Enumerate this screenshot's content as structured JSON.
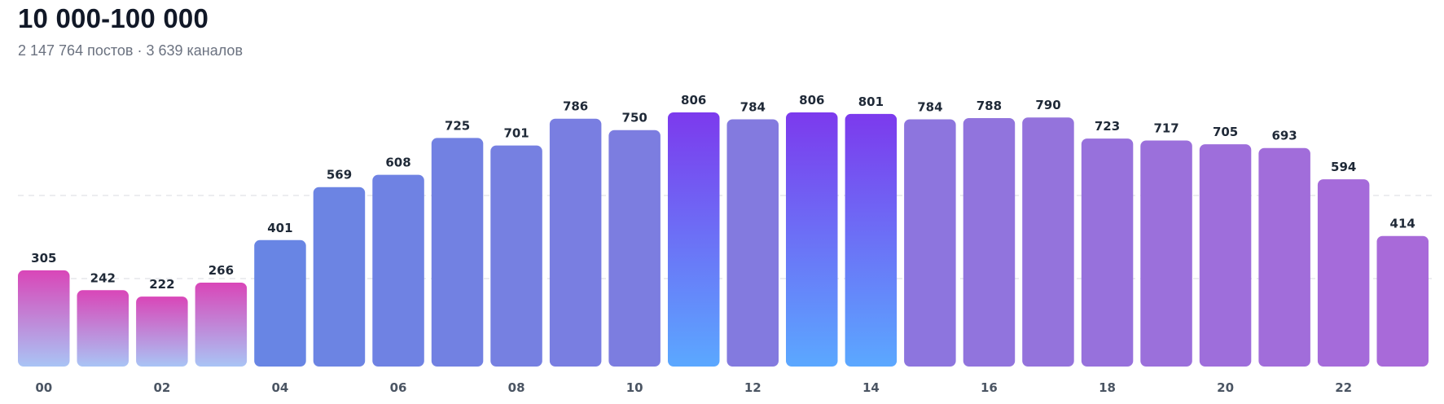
{
  "header": {
    "title": "10 000-100 000",
    "subtitle": "2 147 764 постов · 3 639 каналов"
  },
  "chart_data": {
    "type": "bar",
    "categories": [
      "00",
      "01",
      "02",
      "03",
      "04",
      "05",
      "06",
      "07",
      "08",
      "09",
      "10",
      "11",
      "12",
      "13",
      "14",
      "15",
      "16",
      "17",
      "18",
      "19",
      "20",
      "21",
      "22",
      "23"
    ],
    "visible_tick_labels": [
      "00",
      "",
      "02",
      "",
      "04",
      "",
      "06",
      "",
      "08",
      "",
      "10",
      "",
      "12",
      "",
      "14",
      "",
      "16",
      "",
      "18",
      "",
      "20",
      "",
      "22",
      ""
    ],
    "values": [
      305,
      242,
      222,
      266,
      401,
      569,
      608,
      725,
      701,
      786,
      750,
      806,
      784,
      806,
      801,
      784,
      788,
      790,
      723,
      717,
      705,
      693,
      594,
      414
    ],
    "highlighted": [
      false,
      false,
      false,
      false,
      false,
      false,
      false,
      false,
      false,
      false,
      false,
      true,
      false,
      true,
      true,
      false,
      false,
      false,
      false,
      false,
      false,
      false,
      false,
      false
    ],
    "low": [
      true,
      true,
      true,
      true,
      false,
      false,
      false,
      false,
      false,
      false,
      false,
      false,
      false,
      false,
      false,
      false,
      false,
      false,
      false,
      false,
      false,
      false,
      false,
      false
    ],
    "ylim": [
      0,
      806
    ],
    "grid": "dashed horizontal",
    "colors": {
      "blue": "#5b8be6",
      "purple": "#a86ad9",
      "highlight_top": "#7c3aed",
      "highlight_bottom": "#5ba8ff",
      "low_top": "#d946b8",
      "low_bottom": "#a9c4f5"
    }
  }
}
